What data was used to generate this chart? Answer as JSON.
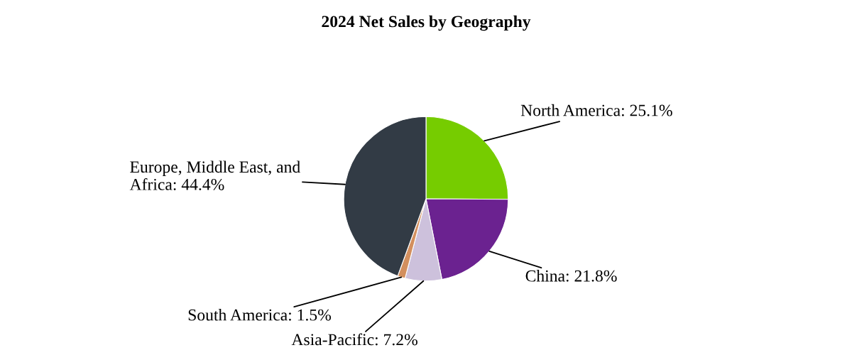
{
  "chart_data": {
    "type": "pie",
    "title": "2024 Net Sales by Geography",
    "categories": [
      "North America",
      "China",
      "Asia-Pacific",
      "South America",
      "Europe, Middle East, and Africa"
    ],
    "values": [
      25.1,
      21.8,
      7.2,
      1.5,
      44.4
    ],
    "value_labels": [
      "25.1%",
      "21.8%",
      "7.2%",
      "1.5%",
      "44.4%"
    ],
    "colors": [
      "#76cc00",
      "#6b2290",
      "#cdc1dc",
      "#d38f5e",
      "#323b45"
    ]
  }
}
